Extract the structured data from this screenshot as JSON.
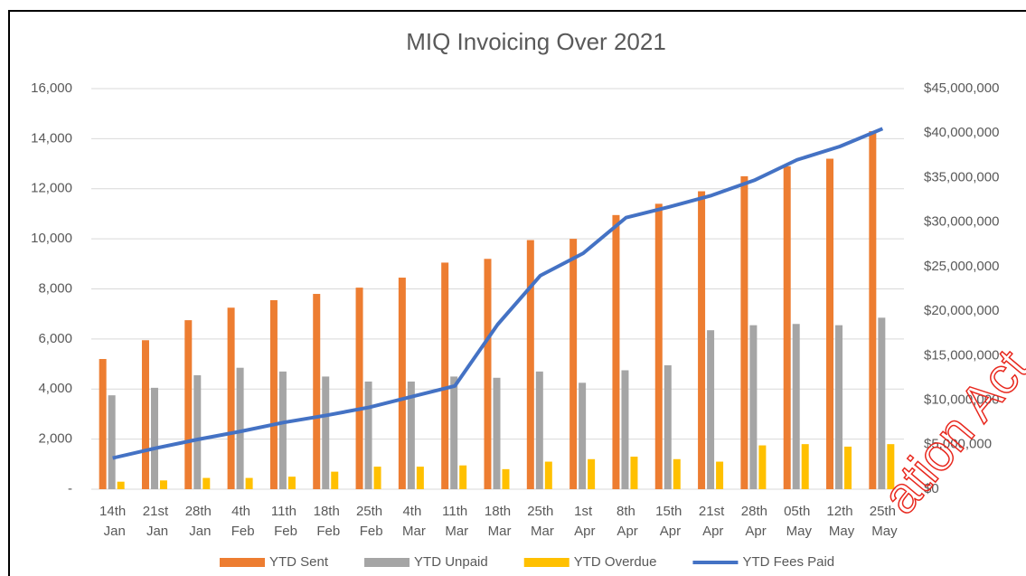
{
  "chart_data": {
    "type": "bar",
    "title": "MIQ Invoicing Over 2021",
    "categories": [
      "14th Jan",
      "21st Jan",
      "28th Jan",
      "4th Feb",
      "11th Feb",
      "18th Feb",
      "25th Feb",
      "4th Mar",
      "11th Mar",
      "18th Mar",
      "25th Mar",
      "1st Apr",
      "8th Apr",
      "15th Apr",
      "21st Apr",
      "28th Apr",
      "05th May",
      "12th May",
      "25th May"
    ],
    "series": [
      {
        "name": "YTD Sent",
        "color": "#ed7d31",
        "type": "bar",
        "values": [
          5200,
          5950,
          6750,
          7250,
          7550,
          7800,
          8050,
          8450,
          9050,
          9200,
          9950,
          10000,
          10950,
          11400,
          11900,
          12500,
          12900,
          13200,
          14300
        ]
      },
      {
        "name": "YTD Unpaid",
        "color": "#a5a5a5",
        "type": "bar",
        "values": [
          3750,
          4050,
          4550,
          4850,
          4700,
          4500,
          4300,
          4300,
          4500,
          4450,
          4700,
          4250,
          4750,
          4950,
          6350,
          6550,
          6600,
          6550,
          6850
        ]
      },
      {
        "name": "YTD Overdue",
        "color": "#ffc000",
        "type": "bar",
        "values": [
          300,
          350,
          450,
          450,
          500,
          700,
          900,
          900,
          950,
          800,
          1100,
          1200,
          1300,
          1200,
          1100,
          1750,
          1800,
          1700,
          1800
        ]
      },
      {
        "name": "YTD Fees Paid",
        "color": "#4472c4",
        "type": "line",
        "axis": "y2",
        "values": [
          3500000,
          4600000,
          5600000,
          6500000,
          7500000,
          8300000,
          9200000,
          10400000,
          11600000,
          18500000,
          24000000,
          26500000,
          30500000,
          31700000,
          33000000,
          34700000,
          37000000,
          38500000,
          40500000
        ]
      }
    ],
    "ylim": [
      0,
      16000
    ],
    "yticks": [
      {
        "value": 0,
        "label": "-"
      },
      {
        "value": 2000,
        "label": "2,000"
      },
      {
        "value": 4000,
        "label": "4,000"
      },
      {
        "value": 6000,
        "label": "6,000"
      },
      {
        "value": 8000,
        "label": "8,000"
      },
      {
        "value": 10000,
        "label": "10,000"
      },
      {
        "value": 12000,
        "label": "12,000"
      },
      {
        "value": 14000,
        "label": "14,000"
      },
      {
        "value": 16000,
        "label": "16,000"
      }
    ],
    "y2lim": [
      0,
      45000000
    ],
    "y2ticks": [
      {
        "value": 0,
        "label": "$0"
      },
      {
        "value": 5000000,
        "label": "$5,000,000"
      },
      {
        "value": 10000000,
        "label": "$10,000,000"
      },
      {
        "value": 15000000,
        "label": "$15,000,000"
      },
      {
        "value": 20000000,
        "label": "$20,000,000"
      },
      {
        "value": 25000000,
        "label": "$25,000,000"
      },
      {
        "value": 30000000,
        "label": "$30,000,000"
      },
      {
        "value": 35000000,
        "label": "$35,000,000"
      },
      {
        "value": 40000000,
        "label": "$40,000,000"
      },
      {
        "value": 45000000,
        "label": "$45,000,000"
      }
    ],
    "grid": true,
    "legend": "bottom",
    "watermark": "ation Act"
  }
}
